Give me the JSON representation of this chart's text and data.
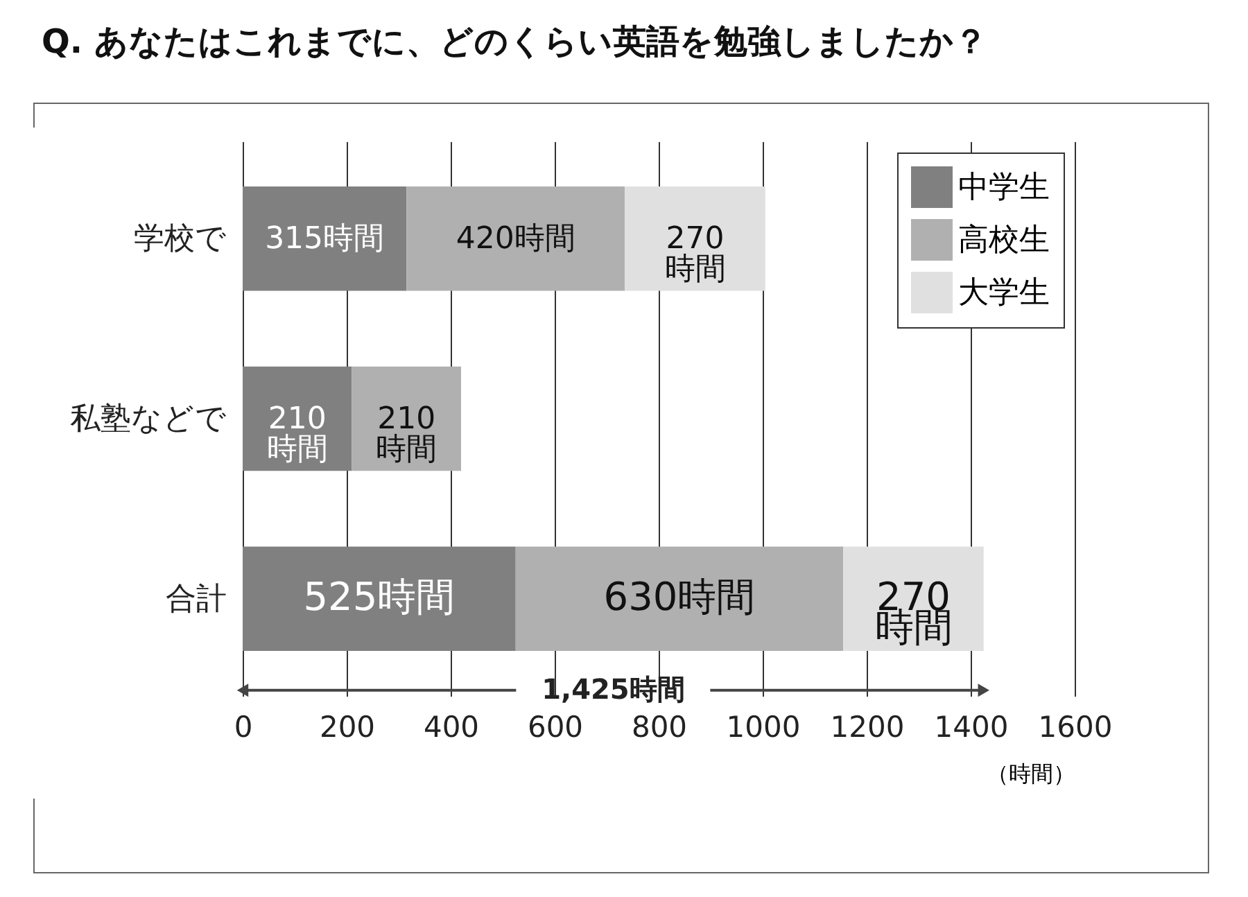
{
  "chart_data": {
    "type": "bar",
    "orientation": "horizontal",
    "stacked": true,
    "title": "Q. あなたはこれまでに、どのくらい英語を勉強しましたか？",
    "xlabel": "（時間）",
    "categories": [
      "学校で",
      "私塾などで",
      "合計"
    ],
    "series": [
      {
        "name": "中学生",
        "color": "#808080",
        "values": [
          315,
          210,
          525
        ],
        "value_labels": [
          "315時間",
          "210\n時間",
          "525時間"
        ]
      },
      {
        "name": "高校生",
        "color": "#b0b0b0",
        "values": [
          420,
          210,
          630
        ],
        "value_labels": [
          "420時間",
          "210\n時間",
          "630時間"
        ]
      },
      {
        "name": "大学生",
        "color": "#e0e0e0",
        "values": [
          270,
          null,
          270
        ],
        "value_labels": [
          "270\n時間",
          null,
          "270\n時間"
        ]
      }
    ],
    "xlim": [
      0,
      1600
    ],
    "xticks": [
      0,
      200,
      400,
      600,
      800,
      1000,
      1200,
      1400,
      1600
    ],
    "grid": "x",
    "legend": "top right",
    "annotations": [
      "1,425時間"
    ]
  }
}
